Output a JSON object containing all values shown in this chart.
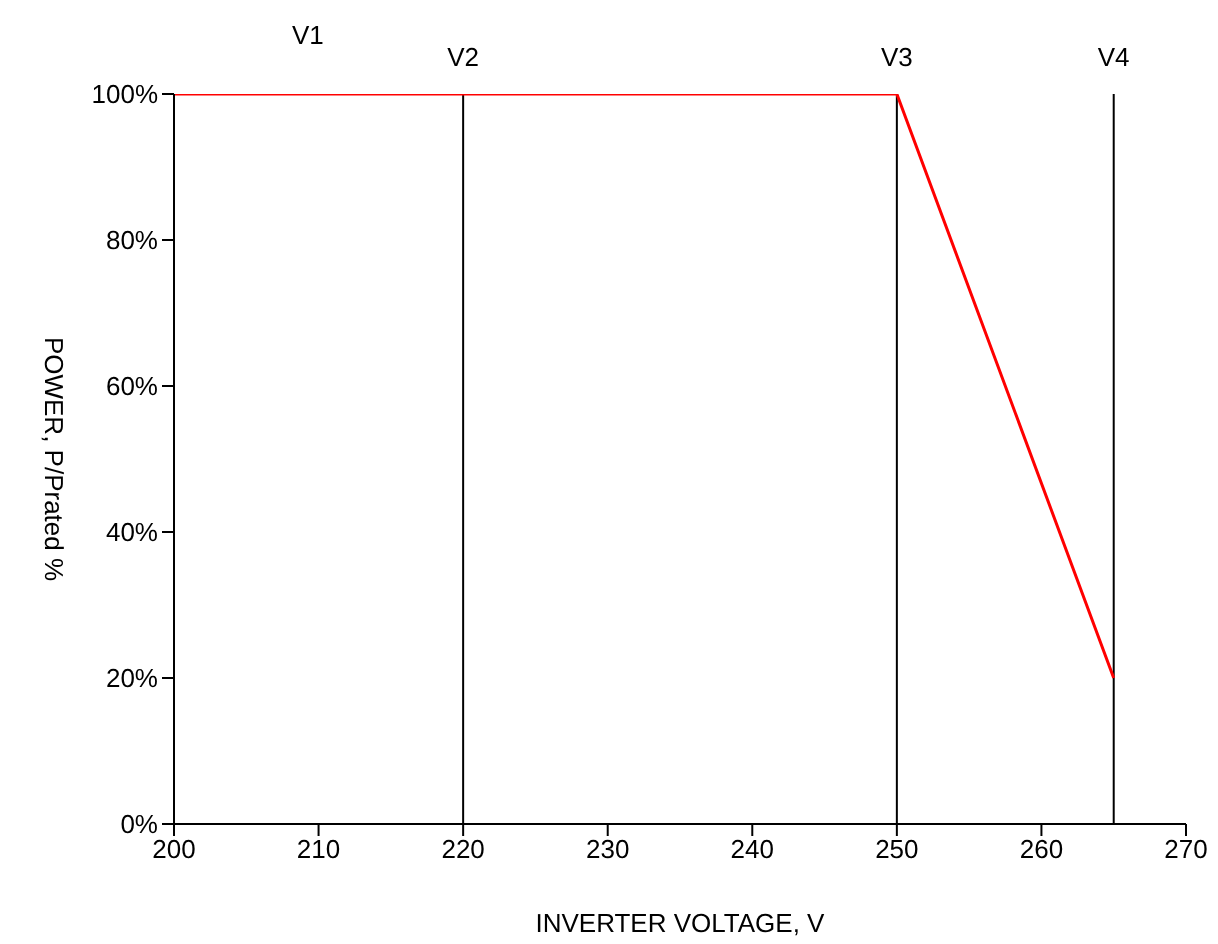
{
  "chart_data": {
    "type": "line",
    "xlabel": "INVERTER VOLTAGE,  V",
    "ylabel": "POWER, P/Prated %",
    "x": [
      200,
      250,
      265
    ],
    "series": [
      {
        "color": "#ff0000",
        "values": [
          100,
          100,
          20
        ]
      }
    ],
    "xlim": [
      200,
      270
    ],
    "xticks": [
      200,
      210,
      220,
      230,
      240,
      250,
      260,
      270
    ],
    "ylim": [
      0,
      100
    ],
    "yticks": [
      {
        "value": 0,
        "label": "0%"
      },
      {
        "value": 20,
        "label": "20%"
      },
      {
        "value": 40,
        "label": "40%"
      },
      {
        "value": 60,
        "label": "60%"
      },
      {
        "value": 80,
        "label": "80%"
      },
      {
        "value": 100,
        "label": "100%"
      }
    ],
    "ref_lines": [
      {
        "axis": "x",
        "value": 220,
        "label": "V2",
        "color": "#000000"
      },
      {
        "axis": "x",
        "value": 250,
        "label": "V3",
        "color": "#000000"
      },
      {
        "axis": "x",
        "value": 265,
        "label": "V4",
        "color": "#000000"
      }
    ],
    "annotations": [
      "V1"
    ],
    "grid": false,
    "legend": false,
    "marker": "none",
    "line_style": "solid"
  }
}
